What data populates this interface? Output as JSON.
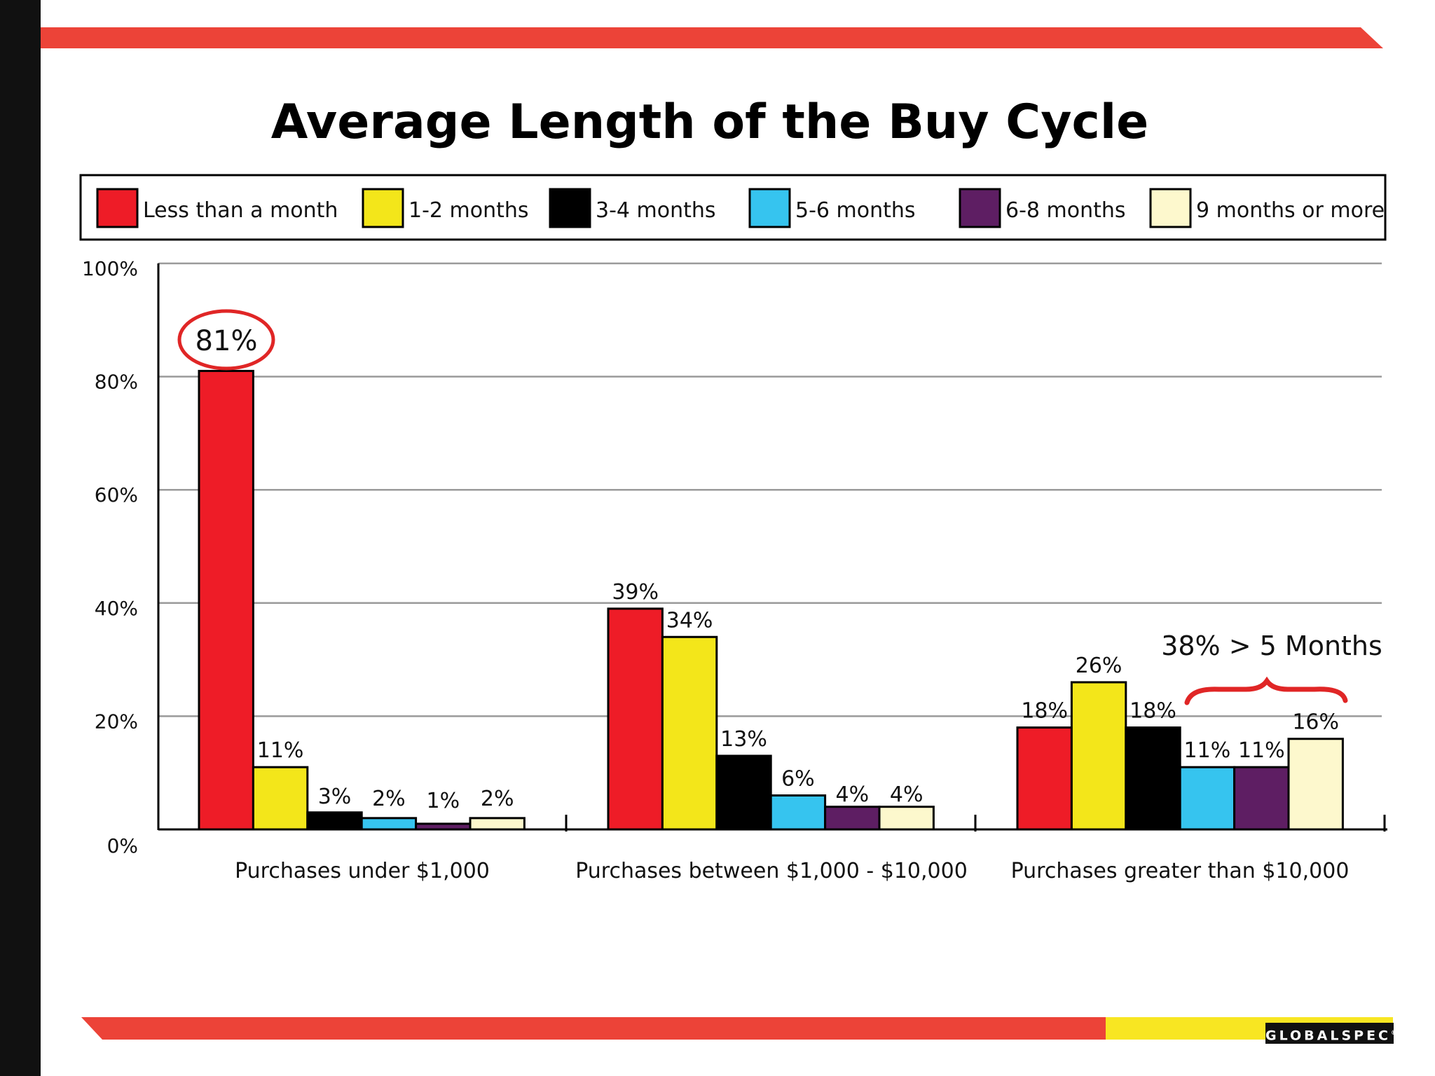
{
  "slide": {
    "title": "Average Length of the Buy Cycle",
    "brand": "GLOBALSPEC",
    "brand_mark": "®",
    "colors": {
      "top_bar": "#ec4338",
      "bottom_bar": "#ec4338",
      "bottom_bar_accent": "#f8e622",
      "left_strip": "#111111",
      "highlight": "#e02626"
    }
  },
  "chart_data": {
    "type": "bar",
    "title": "Average Length of the Buy Cycle",
    "xlabel": "",
    "ylabel": "",
    "ylim": [
      0,
      100
    ],
    "yticks": [
      0,
      20,
      40,
      60,
      80,
      100
    ],
    "ytick_labels": [
      "0%",
      "20%",
      "40%",
      "60%",
      "80%",
      "100%"
    ],
    "grid": true,
    "legend": "top",
    "categories": [
      "Purchases under $1,000",
      "Purchases between $1,000 - $10,000",
      "Purchases greater than $10,000"
    ],
    "series": [
      {
        "name": "Less than a month",
        "color": "#ee1c27",
        "values": [
          81,
          39,
          18
        ],
        "labels": [
          "81%",
          "39%",
          "18%"
        ]
      },
      {
        "name": "1-2 months",
        "color": "#f3e61a",
        "values": [
          11,
          34,
          26
        ],
        "labels": [
          "11%",
          "34%",
          "26%"
        ]
      },
      {
        "name": "3-4 months",
        "color": "#000000",
        "values": [
          3,
          13,
          18
        ],
        "labels": [
          "3%",
          "13%",
          "18%"
        ]
      },
      {
        "name": "5-6 months",
        "color": "#36c4ef",
        "values": [
          2,
          6,
          11
        ],
        "labels": [
          "2%",
          "6%",
          "11%"
        ]
      },
      {
        "name": "6-8 months",
        "color": "#5e1e63",
        "values": [
          1,
          4,
          11
        ],
        "labels": [
          "1%",
          "4%",
          "11%"
        ]
      },
      {
        "name": "9 months or more",
        "color": "#fdf8cd",
        "values": [
          2,
          4,
          16
        ],
        "labels": [
          "2%",
          "4%",
          "16%"
        ]
      }
    ],
    "annotations": [
      {
        "text": "81%",
        "style": "circled",
        "category": 0,
        "series": 0
      },
      {
        "text": "38% > 5 Months",
        "style": "brace",
        "category": 2,
        "series": [
          3,
          4,
          5
        ]
      }
    ]
  }
}
